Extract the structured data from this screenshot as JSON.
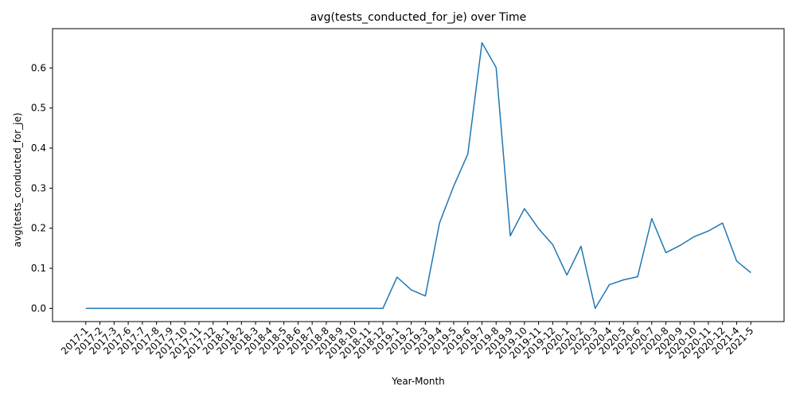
{
  "chart_data": {
    "type": "line",
    "title": "avg(tests_conducted_for_je) over Time",
    "xlabel": "Year-Month",
    "ylabel": "avg(tests_conducted_for_je)",
    "ylim": [
      -0.033,
      0.698
    ],
    "yticks": [
      0.0,
      0.1,
      0.2,
      0.3,
      0.4,
      0.5,
      0.6
    ],
    "ytick_labels": [
      "0.0",
      "0.1",
      "0.2",
      "0.3",
      "0.4",
      "0.5",
      "0.6"
    ],
    "grid": false,
    "line_color": "#1f77b4",
    "categories": [
      "2017-1",
      "2017-2",
      "2017-3",
      "2017-6",
      "2017-7",
      "2017-8",
      "2017-9",
      "2017-10",
      "2017-11",
      "2017-12",
      "2018-1",
      "2018-2",
      "2018-3",
      "2018-4",
      "2018-5",
      "2018-6",
      "2018-7",
      "2018-8",
      "2018-9",
      "2018-10",
      "2018-11",
      "2018-12",
      "2019-1",
      "2019-2",
      "2019-3",
      "2019-4",
      "2019-5",
      "2019-6",
      "2019-7",
      "2019-8",
      "2019-9",
      "2019-10",
      "2019-11",
      "2019-12",
      "2020-1",
      "2020-2",
      "2020-3",
      "2020-4",
      "2020-5",
      "2020-6",
      "2020-7",
      "2020-8",
      "2020-9",
      "2020-10",
      "2020-11",
      "2020-12",
      "2021-4",
      "2021-5"
    ],
    "series": [
      {
        "values": [
          0.0,
          0.0,
          0.0,
          0.0,
          0.0,
          0.0,
          0.0,
          0.0,
          0.0,
          0.0,
          0.0,
          0.0,
          0.0,
          0.0,
          0.0,
          0.0,
          0.0,
          0.0,
          0.0,
          0.0,
          0.0,
          0.0,
          0.078,
          0.046,
          0.031,
          0.213,
          0.305,
          0.385,
          0.663,
          0.601,
          0.181,
          0.249,
          0.199,
          0.159,
          0.083,
          0.155,
          0.0,
          0.059,
          0.071,
          0.079,
          0.224,
          0.139,
          0.157,
          0.179,
          0.193,
          0.213,
          0.118,
          0.089
        ]
      }
    ]
  }
}
